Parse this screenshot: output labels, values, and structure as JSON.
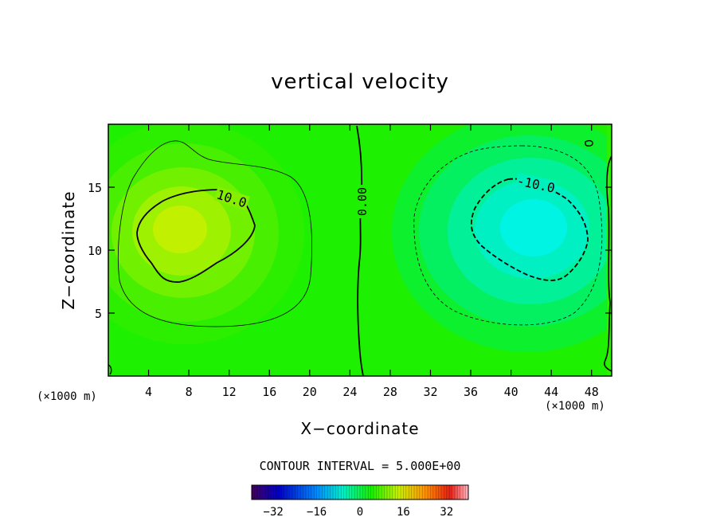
{
  "chart_data": {
    "type": "heatmap",
    "title": "vertical velocity",
    "xlabel": "X−coordinate",
    "ylabel": "Z−coordinate",
    "x_unit_label": "(×1000 m)",
    "x_ticks": [
      4,
      8,
      12,
      16,
      20,
      24,
      28,
      32,
      36,
      40,
      44,
      48
    ],
    "y_ticks": [
      5,
      10,
      15
    ],
    "xlim": [
      0,
      50
    ],
    "ylim": [
      0,
      20
    ],
    "contour_interval_label": "CONTOUR INTERVAL = 5.000E+00",
    "contour_labels": [
      "10.0",
      "0.00",
      "-10.0"
    ],
    "colorbar": {
      "ticks": [
        "−32",
        "−16",
        "0",
        "16",
        "32"
      ],
      "range": [
        -40,
        40
      ]
    },
    "features": [
      {
        "name": "updraft",
        "center_x": 7.5,
        "center_z": 12,
        "peak": 13
      },
      {
        "name": "downdraft",
        "center_x": 42,
        "center_z": 12,
        "peak": -15
      }
    ]
  }
}
